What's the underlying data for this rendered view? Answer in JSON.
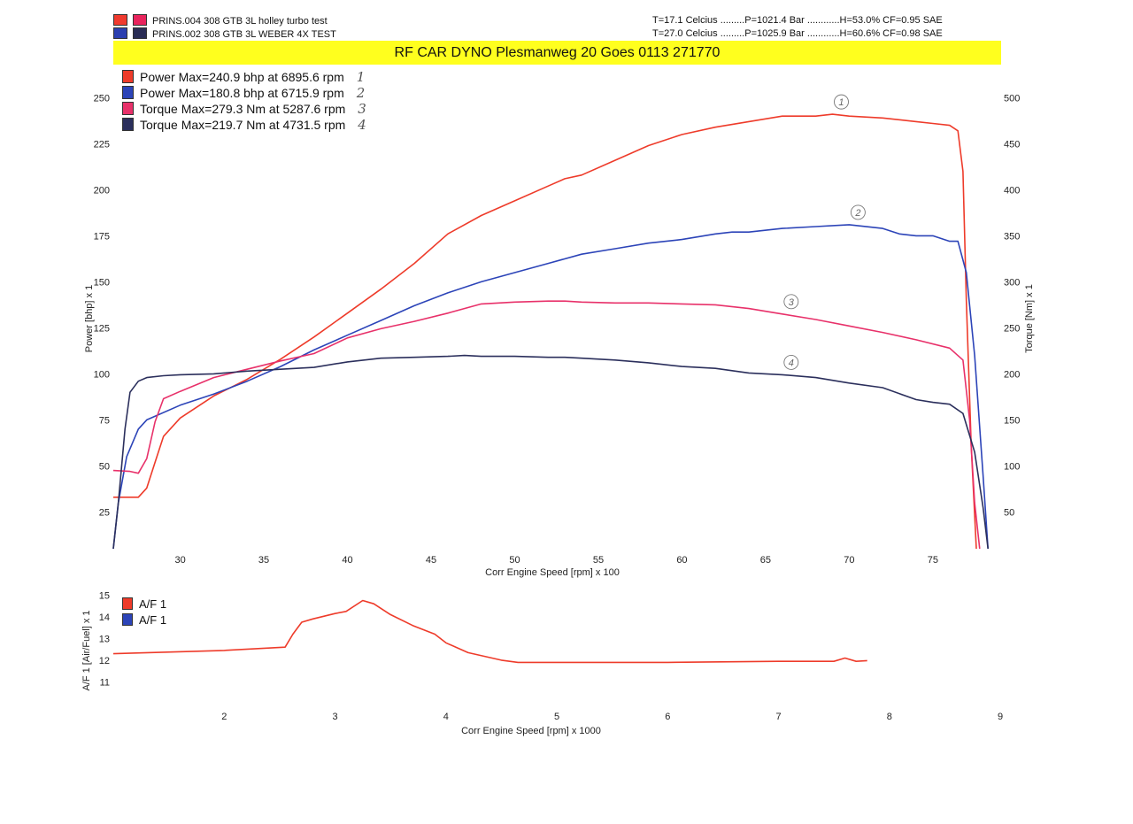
{
  "header": {
    "runs": [
      {
        "label": "PRINS.004 308 GTB   3L holley turbo test",
        "colors": [
          "#f03a2e",
          "#e8245c"
        ],
        "conditions": "T=17.1 Celcius .........P=1021.4 Bar ............H=53.0% CF=0.95 SAE"
      },
      {
        "label": "PRINS.002 308 GTB   3L WEBER 4X TEST",
        "colors": [
          "#2b3fb0",
          "#2a2d55"
        ],
        "conditions": "T=27.0 Celcius .........P=1025.9 Bar ............H=60.6% CF=0.98 SAE"
      }
    ],
    "banner": "RF CAR DYNO  Plesmanweg 20 Goes  0113 271770"
  },
  "chart_data": [
    {
      "type": "line",
      "xlabel": "Corr Engine Speed [rpm] x 100",
      "ylabel": "Power [bhp] x 1",
      "y2label": "Torque [Nm] x 1",
      "xlim": [
        26,
        78.5
      ],
      "ylim": [
        5,
        255
      ],
      "y2lim": [
        10,
        510
      ],
      "xticks": [
        30,
        35,
        40,
        45,
        50,
        55,
        60,
        65,
        70,
        75
      ],
      "yticks": [
        25,
        50,
        75,
        100,
        125,
        150,
        175,
        200,
        225,
        250
      ],
      "y2ticks": [
        50,
        100,
        150,
        200,
        250,
        300,
        350,
        400,
        450,
        500
      ],
      "legend_position": "top-left",
      "grid": false,
      "series": [
        {
          "name": "Power  Max=240.9 bhp at 6895.6 rpm",
          "tag": "1",
          "axis": "left",
          "color": "#ee3b2a",
          "x": [
            26,
            27,
            27.5,
            28,
            28.5,
            29,
            30,
            32,
            34,
            36,
            38,
            40,
            42,
            44,
            46,
            48,
            50,
            52,
            53,
            54,
            56,
            58,
            60,
            62,
            64,
            66,
            68,
            69,
            70,
            72,
            74,
            75,
            76,
            76.5,
            76.8,
            77,
            77.3,
            77.6
          ],
          "y": [
            33,
            33,
            33,
            38,
            52,
            66,
            76,
            88,
            97,
            108,
            120,
            133,
            146,
            160,
            176,
            186,
            194,
            202,
            206,
            208,
            216,
            224,
            230,
            234,
            237,
            240,
            240,
            241,
            240,
            239,
            237,
            236,
            235,
            232,
            210,
            140,
            60,
            5
          ]
        },
        {
          "name": "Power  Max=180.8 bhp at 6715.9 rpm",
          "tag": "2",
          "axis": "left",
          "color": "#2c44b8",
          "x": [
            26,
            26.3,
            26.8,
            27.5,
            28,
            30,
            32,
            34,
            36,
            38,
            40,
            42,
            44,
            46,
            48,
            50,
            52,
            54,
            56,
            58,
            60,
            62,
            63,
            64,
            66,
            68,
            70,
            72,
            73,
            74,
            75,
            76,
            76.5,
            77,
            77.5,
            78,
            78.3
          ],
          "y": [
            5,
            30,
            55,
            70,
            75,
            83,
            89,
            96,
            104,
            113,
            121,
            129,
            137,
            144,
            150,
            155,
            160,
            165,
            168,
            171,
            173,
            176,
            177,
            177,
            179,
            180,
            181,
            179,
            176,
            175,
            175,
            172,
            172,
            155,
            110,
            45,
            5
          ]
        },
        {
          "name": "Torque  Max=279.3 Nm at 5287.6 rpm",
          "tag": "3",
          "axis": "right",
          "color": "#e8316a",
          "x": [
            26,
            27,
            27.5,
            28,
            28.5,
            29,
            30,
            32,
            34,
            36,
            38,
            40,
            42,
            44,
            46,
            48,
            50,
            52,
            53,
            54,
            56,
            58,
            60,
            62,
            64,
            66,
            68,
            70,
            72,
            74,
            76,
            76.8,
            77.2,
            77.5,
            77.8
          ],
          "y": [
            95,
            94,
            92,
            108,
            148,
            173,
            181,
            196,
            205,
            214,
            222,
            239,
            249,
            257,
            266,
            276,
            278,
            279,
            279,
            278,
            277,
            277,
            276,
            275,
            271,
            265,
            259,
            252,
            245,
            237,
            228,
            215,
            150,
            60,
            10
          ]
        },
        {
          "name": "Torque  Max=219.7 Nm at 4731.5 rpm",
          "tag": "4",
          "axis": "right",
          "color": "#2b2f5c",
          "x": [
            26,
            26.3,
            26.7,
            27,
            27.5,
            28,
            29,
            30,
            32,
            34,
            36,
            38,
            40,
            42,
            44,
            46,
            47,
            48,
            50,
            52,
            53,
            54,
            56,
            58,
            60,
            62,
            64,
            66,
            68,
            70,
            72,
            74,
            75,
            76,
            76.8,
            77.5,
            78,
            78.3
          ],
          "y": [
            10,
            60,
            140,
            180,
            192,
            196,
            198,
            199,
            200,
            203,
            205,
            207,
            213,
            217,
            218,
            219,
            220,
            219,
            219,
            218,
            218,
            217,
            215,
            212,
            208,
            206,
            201,
            199,
            196,
            190,
            185,
            172,
            169,
            167,
            157,
            115,
            55,
            10
          ]
        }
      ]
    },
    {
      "type": "line",
      "xlabel": "Corr Engine Speed [rpm] x 1000",
      "ylabel": "A/F 1 [Air/Fuel] x 1",
      "xlim": [
        1.0,
        9.0
      ],
      "ylim": [
        10,
        15.3
      ],
      "xticks": [
        2,
        3,
        4,
        5,
        6,
        7,
        8,
        9
      ],
      "yticks": [
        11,
        12,
        13,
        14,
        15
      ],
      "legend_position": "top-left",
      "grid": false,
      "series": [
        {
          "name": "A/F 1",
          "color": "#ee3b2a",
          "x": [
            1.0,
            2.0,
            2.55,
            2.62,
            2.7,
            2.8,
            3.0,
            3.1,
            3.25,
            3.35,
            3.5,
            3.7,
            3.9,
            4.0,
            4.2,
            4.5,
            4.65,
            5.0,
            6.0,
            7.0,
            7.5,
            7.6,
            7.7,
            7.8
          ],
          "y": [
            12.3,
            12.45,
            12.6,
            13.2,
            13.75,
            13.9,
            14.15,
            14.25,
            14.75,
            14.6,
            14.1,
            13.6,
            13.2,
            12.8,
            12.35,
            12.0,
            11.9,
            11.9,
            11.9,
            11.95,
            11.95,
            12.1,
            11.95,
            11.98
          ]
        },
        {
          "name": "A/F 1",
          "color": "#2c44b8",
          "x": [],
          "y": []
        }
      ]
    }
  ]
}
